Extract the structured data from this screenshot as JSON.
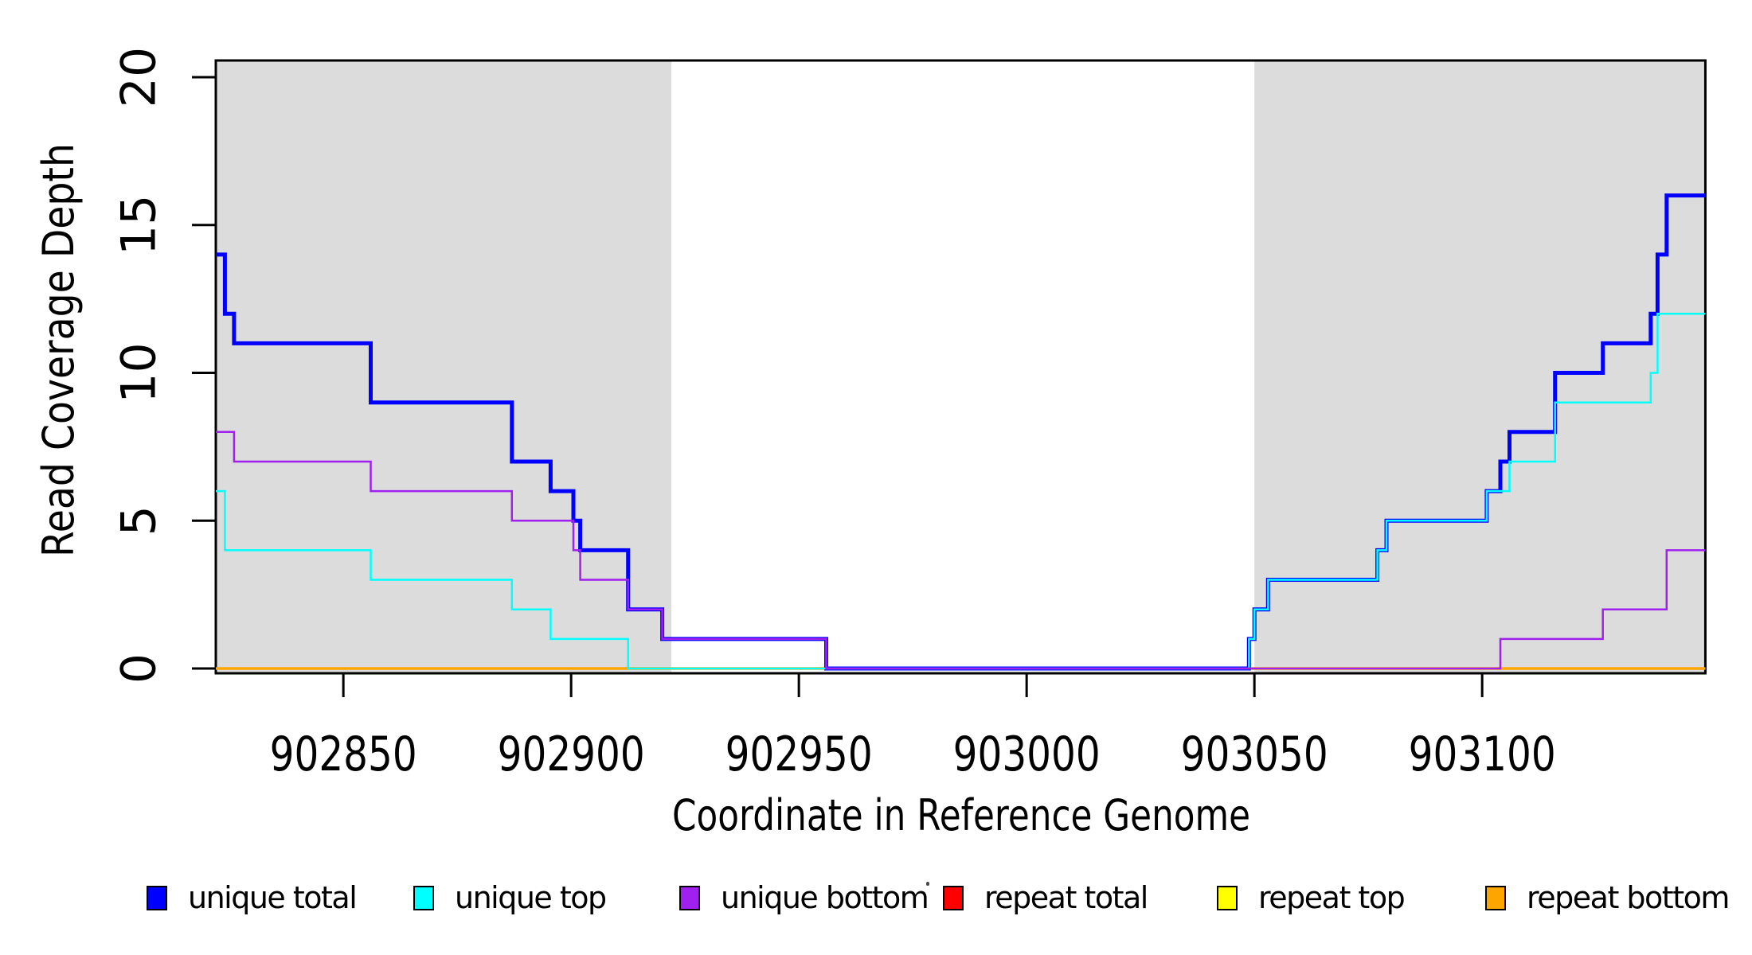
{
  "chart_data": {
    "type": "line",
    "subtype": "step",
    "title": "",
    "xlabel": "Coordinate in Reference Genome",
    "ylabel": "Read Coverage Depth",
    "x_range": [
      902822,
      903149
    ],
    "ylim": [
      0,
      20.7
    ],
    "x_ticks": [
      902850,
      902900,
      902950,
      903000,
      903050,
      903100
    ],
    "y_ticks": [
      0,
      5,
      10,
      15,
      20
    ],
    "grid": false,
    "shade_color": "#DCDCDC",
    "shaded_regions": [
      {
        "from": 902822,
        "to": 902922
      },
      {
        "from": 903050,
        "to": 903149
      }
    ],
    "draw_order": [
      "repeat total",
      "repeat top",
      "repeat bottom",
      "unique total",
      "unique top",
      "unique bottom"
    ],
    "series": [
      {
        "name": "unique total",
        "color": "#0000FF",
        "stroke_width": 5,
        "steps": [
          [
            902822,
            14
          ],
          [
            902824,
            12
          ],
          [
            902826,
            11
          ],
          [
            902856,
            9
          ],
          [
            902887,
            7
          ],
          [
            902895.5,
            6
          ],
          [
            902900.5,
            5
          ],
          [
            902902,
            4
          ],
          [
            902912.5,
            2
          ],
          [
            902920,
            1
          ],
          [
            902956,
            0
          ],
          [
            903048.8,
            1
          ],
          [
            903050,
            2
          ],
          [
            903053,
            3
          ],
          [
            903077,
            4
          ],
          [
            903079,
            5
          ],
          [
            903101,
            6
          ],
          [
            903104,
            7
          ],
          [
            903106,
            8
          ],
          [
            903116,
            10
          ],
          [
            903126.5,
            11
          ],
          [
            903137,
            12
          ],
          [
            903138.5,
            14
          ],
          [
            903140.5,
            16
          ]
        ]
      },
      {
        "name": "unique top",
        "color": "#00FFFF",
        "stroke_width": 2.5,
        "steps": [
          [
            902822,
            6
          ],
          [
            902824,
            4
          ],
          [
            902856,
            3
          ],
          [
            902887,
            2
          ],
          [
            902895.5,
            1
          ],
          [
            902912.5,
            0
          ],
          [
            903048.8,
            1
          ],
          [
            903050,
            2
          ],
          [
            903053,
            3
          ],
          [
            903077,
            4
          ],
          [
            903079,
            5
          ],
          [
            903101,
            6
          ],
          [
            903106,
            7
          ],
          [
            903116,
            9
          ],
          [
            903137,
            10
          ],
          [
            903138.5,
            12
          ]
        ]
      },
      {
        "name": "unique bottom",
        "color": "#A020F0",
        "stroke_width": 2.5,
        "steps": [
          [
            902822,
            8
          ],
          [
            902826,
            7
          ],
          [
            902856,
            6
          ],
          [
            902887,
            5
          ],
          [
            902900.5,
            4
          ],
          [
            902902,
            3
          ],
          [
            902912.5,
            2
          ],
          [
            902920,
            1
          ],
          [
            902956,
            0
          ],
          [
            903104,
            1
          ],
          [
            903126.5,
            2
          ],
          [
            903140.5,
            4
          ]
        ]
      },
      {
        "name": "repeat total",
        "color": "#FF0000",
        "stroke_width": 2,
        "steps": [
          [
            902822,
            0
          ]
        ]
      },
      {
        "name": "repeat top",
        "color": "#FFFF00",
        "stroke_width": 2,
        "steps": [
          [
            902822,
            0
          ]
        ]
      },
      {
        "name": "repeat bottom",
        "color": "#FFA500",
        "stroke_width": 3.5,
        "steps": [
          [
            902822,
            0
          ]
        ]
      }
    ]
  },
  "legend": {
    "items": [
      {
        "label": "unique total",
        "color": "#0000FF"
      },
      {
        "label": "unique top",
        "color": "#00FFFF"
      },
      {
        "label": "unique bottom",
        "color": "#A020F0"
      },
      {
        "label": "repeat total",
        "color": "#FF0000"
      },
      {
        "label": "repeat top",
        "color": "#FFFF00"
      },
      {
        "label": "repeat bottom",
        "color": "#FFA500"
      }
    ]
  }
}
